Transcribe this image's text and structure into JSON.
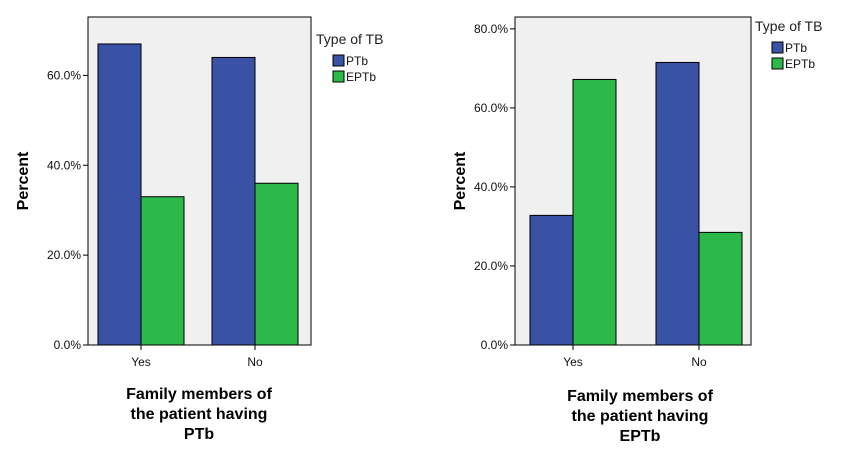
{
  "chart_data": [
    {
      "type": "bar",
      "categories": [
        "Yes",
        "No"
      ],
      "series": [
        {
          "name": "PTb",
          "values": [
            67.0,
            64.0
          ]
        },
        {
          "name": "EPTb",
          "values": [
            33.0,
            36.0
          ]
        }
      ],
      "xlabel": "Family members of\nthe patient having\nPTb",
      "ylabel": "Percent",
      "ylim": [
        0,
        73
      ],
      "yticks": [
        "0.0%",
        "20.0%",
        "40.0%",
        "60.0%"
      ],
      "ytick_values": [
        0,
        20,
        40,
        60
      ],
      "legend_title": "Type of TB",
      "legend_position": "top-right-outside",
      "grid": false
    },
    {
      "type": "bar",
      "categories": [
        "Yes",
        "No"
      ],
      "series": [
        {
          "name": "PTb",
          "values": [
            32.8,
            71.5
          ]
        },
        {
          "name": "EPTb",
          "values": [
            67.2,
            28.5
          ]
        }
      ],
      "xlabel": "Family members of\nthe patient having\nEPTb",
      "ylabel": "Percent",
      "ylim": [
        0,
        83
      ],
      "yticks": [
        "0.0%",
        "20.0%",
        "40.0%",
        "60.0%",
        "80.0%"
      ],
      "ytick_values": [
        0,
        20,
        40,
        60,
        80
      ],
      "legend_title": "Type of TB",
      "legend_position": "top-right-outside",
      "grid": false
    }
  ],
  "colors": {
    "PTb": "#3a52a5",
    "EPTb": "#2db84a",
    "plot_background": "#f0f0f0"
  }
}
